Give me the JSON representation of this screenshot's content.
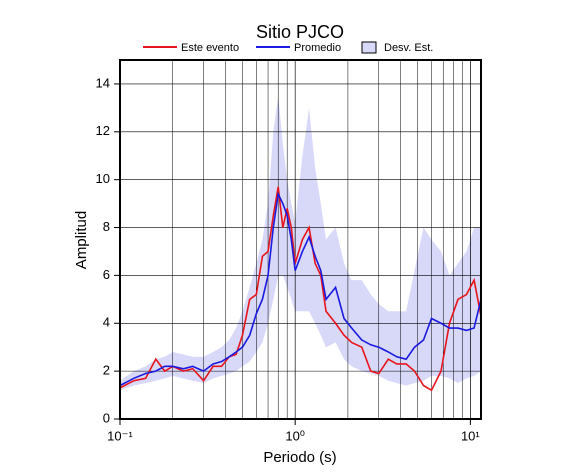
{
  "chart_data": {
    "type": "line",
    "title": "Sitio PJCO",
    "x_label": "Periodo (s)",
    "y_label": "Amplitud",
    "log_x": true,
    "grid": true,
    "xlim": [
      0.1,
      11.5
    ],
    "ylim": [
      0,
      15
    ],
    "xticks": [
      {
        "value": 0.1,
        "label": "10⁻¹"
      },
      {
        "value": 1,
        "label": "10⁰"
      },
      {
        "value": 10,
        "label": "10¹"
      }
    ],
    "yticks": [
      0,
      2,
      4,
      6,
      8,
      10,
      12,
      14
    ],
    "x": [
      0.1,
      0.12,
      0.14,
      0.16,
      0.18,
      0.2,
      0.23,
      0.26,
      0.3,
      0.34,
      0.38,
      0.42,
      0.46,
      0.5,
      0.55,
      0.6,
      0.65,
      0.7,
      0.75,
      0.8,
      0.85,
      0.9,
      0.95,
      1.0,
      1.1,
      1.2,
      1.3,
      1.4,
      1.5,
      1.7,
      1.9,
      2.1,
      2.4,
      2.7,
      3.0,
      3.4,
      3.8,
      4.3,
      4.8,
      5.4,
      6.0,
      6.8,
      7.6,
      8.5,
      9.5,
      10.5,
      11.5
    ],
    "series": [
      {
        "name": "Este evento",
        "color": "#e8141c",
        "values": [
          1.3,
          1.6,
          1.7,
          2.5,
          2.0,
          2.2,
          2.0,
          2.1,
          1.6,
          2.2,
          2.2,
          2.6,
          2.7,
          3.5,
          5.0,
          5.2,
          6.8,
          7.0,
          8.5,
          9.7,
          8.0,
          8.8,
          8.0,
          6.5,
          7.5,
          8.0,
          6.5,
          6.0,
          4.5,
          4.0,
          3.5,
          3.2,
          3.0,
          2.0,
          1.9,
          2.5,
          2.3,
          2.3,
          2.0,
          1.4,
          1.2,
          2.0,
          4.0,
          5.0,
          5.2,
          5.8,
          4.3
        ]
      },
      {
        "name": "Promedio",
        "color": "#1a1ae0",
        "values": [
          1.4,
          1.7,
          1.9,
          2.0,
          2.2,
          2.2,
          2.1,
          2.2,
          2.0,
          2.3,
          2.4,
          2.6,
          2.8,
          3.0,
          3.5,
          4.4,
          5.0,
          6.0,
          8.0,
          9.4,
          9.0,
          8.5,
          7.5,
          6.2,
          7.0,
          7.6,
          6.8,
          6.2,
          5.0,
          5.5,
          4.2,
          3.8,
          3.3,
          3.1,
          3.0,
          2.8,
          2.6,
          2.5,
          3.0,
          3.3,
          4.2,
          4.0,
          3.8,
          3.8,
          3.7,
          3.8,
          5.0
        ]
      },
      {
        "name": "Desv. Est.",
        "color": "#d8d8f8",
        "band": true,
        "upper": [
          1.6,
          2.0,
          2.2,
          2.5,
          2.6,
          2.8,
          2.7,
          2.6,
          2.6,
          2.8,
          3.0,
          3.3,
          3.8,
          4.5,
          5.5,
          6.5,
          7.5,
          9.0,
          12,
          13.5,
          11.5,
          10,
          9,
          8.2,
          11,
          13,
          10.5,
          9,
          7.5,
          8,
          6.5,
          5.8,
          5.8,
          5.2,
          4.8,
          4.5,
          4.5,
          4.5,
          6.2,
          8.0,
          7.5,
          7.0,
          6.0,
          6.5,
          7.0,
          8.0,
          8.0
        ],
        "lower": [
          1.2,
          1.4,
          1.5,
          1.6,
          1.7,
          1.8,
          1.7,
          1.6,
          1.5,
          1.7,
          1.8,
          1.9,
          2.0,
          2.2,
          2.4,
          2.8,
          3.2,
          4.0,
          5.0,
          6.0,
          6.0,
          5.5,
          5.0,
          4.5,
          4.5,
          4.5,
          4.0,
          3.5,
          3.0,
          3.2,
          2.5,
          2.2,
          2.0,
          1.9,
          1.8,
          1.6,
          1.5,
          1.4,
          1.5,
          1.6,
          1.8,
          1.8,
          1.7,
          1.5,
          1.7,
          1.8,
          2.0
        ]
      }
    ]
  }
}
